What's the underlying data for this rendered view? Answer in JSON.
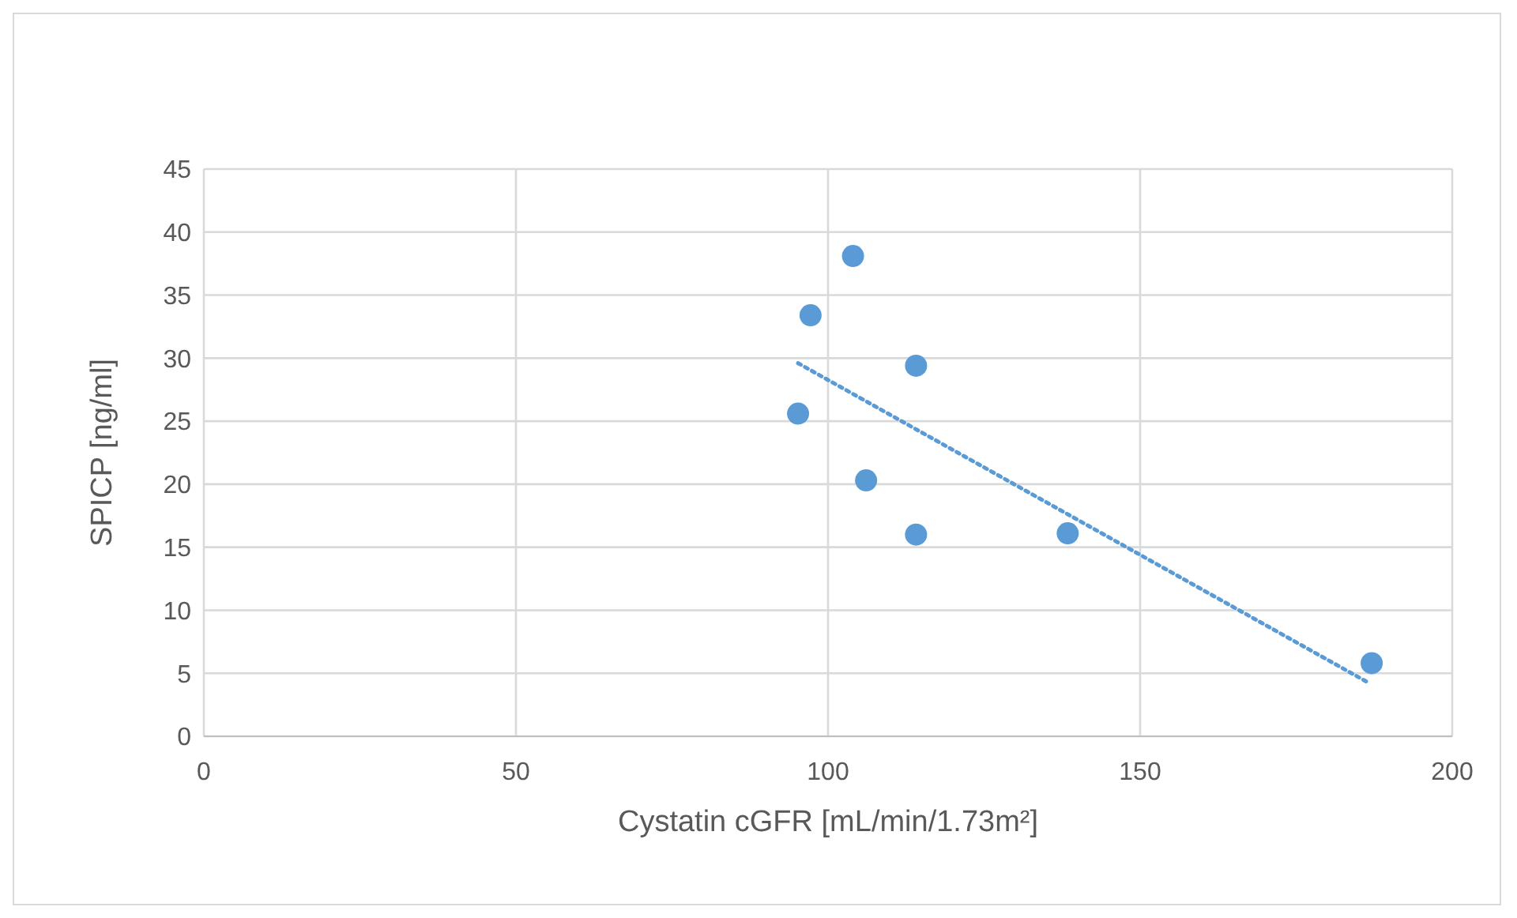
{
  "chart_data": {
    "type": "scatter",
    "xlabel": "Cystatin cGFR [mL/min/1.73m²]",
    "ylabel": "SPICP [ng/ml]",
    "xlim": [
      0,
      200
    ],
    "xticks": [
      0,
      50,
      100,
      150,
      200
    ],
    "ylim": [
      0,
      45
    ],
    "yticks": [
      0,
      5,
      10,
      15,
      20,
      25,
      30,
      35,
      40,
      45
    ],
    "grid": true,
    "legend": false,
    "series": [
      {
        "color": "#5b9bd5",
        "marker": "circle",
        "x": [
          104,
          97.2,
          114.1,
          95.2,
          106.1,
          114.1,
          138.4,
          187.1
        ],
        "values": [
          38.1,
          33.4,
          29.4,
          25.6,
          20.3,
          16.0,
          16.1,
          5.8
        ]
      },
      {
        "type": "line",
        "color": "#5b9bd5",
        "marker": "none",
        "line_style": "dotted",
        "x": [
          95.2,
          186.4
        ],
        "values": [
          29.6,
          4.3
        ]
      }
    ]
  }
}
